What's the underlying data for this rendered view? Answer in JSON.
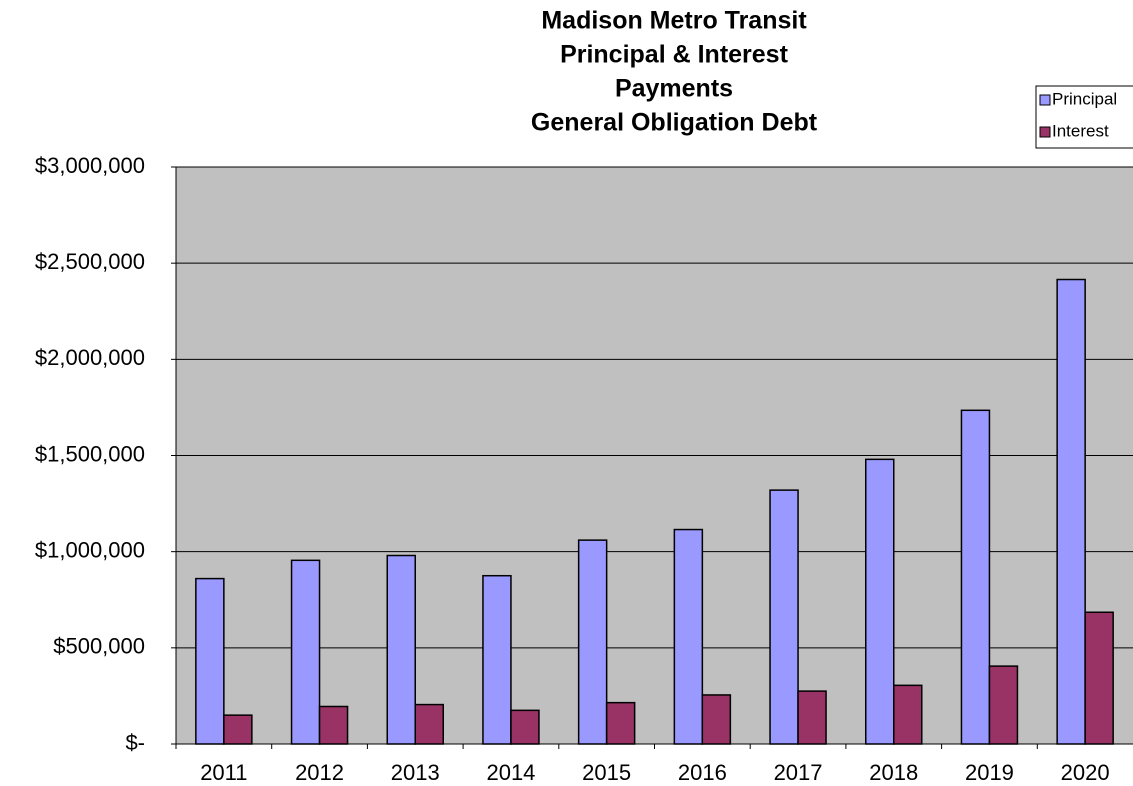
{
  "chart_data": {
    "type": "bar",
    "title": [
      "Madison Metro Transit",
      "Principal & Interest",
      "Payments",
      "General Obligation Debt"
    ],
    "categories": [
      "2011",
      "2012",
      "2013",
      "2014",
      "2015",
      "2016",
      "2017",
      "2018",
      "2019",
      "2020"
    ],
    "series": [
      {
        "name": "Principal",
        "color": "#9999ff",
        "values": [
          860000,
          955000,
          980000,
          875000,
          1060000,
          1115000,
          1320000,
          1480000,
          1735000,
          2415000
        ]
      },
      {
        "name": "Interest",
        "color": "#993366",
        "values": [
          150000,
          195000,
          205000,
          175000,
          215000,
          255000,
          275000,
          305000,
          405000,
          685000
        ]
      }
    ],
    "ylim": [
      0,
      3000000
    ],
    "yticks": [
      {
        "value": 0,
        "label": "$-"
      },
      {
        "value": 500000,
        "label": "$500,000"
      },
      {
        "value": 1000000,
        "label": "$1,000,000"
      },
      {
        "value": 1500000,
        "label": "$1,500,000"
      },
      {
        "value": 2000000,
        "label": "$2,000,000"
      },
      {
        "value": 2500000,
        "label": "$2,500,000"
      },
      {
        "value": 3000000,
        "label": "$3,000,000"
      }
    ],
    "grid": true,
    "plot_background": "#c0c0c0",
    "legend": "top-right"
  }
}
